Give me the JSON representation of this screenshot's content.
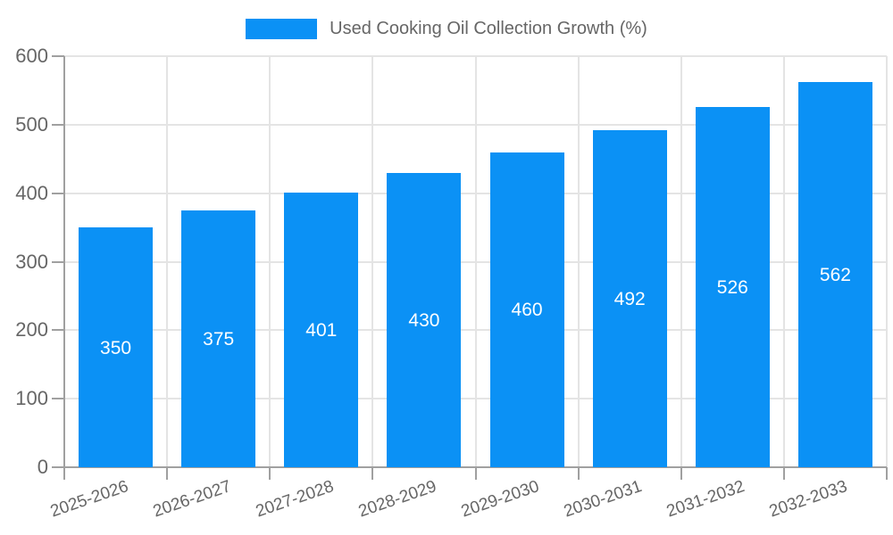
{
  "legend": {
    "label": "Used Cooking Oil Collection Growth (%)"
  },
  "chart_data": {
    "type": "bar",
    "title": "Used Cooking Oil Collection Growth (%)",
    "categories": [
      "2025-2026",
      "2026-2027",
      "2027-2028",
      "2028-2029",
      "2029-2030",
      "2030-2031",
      "2031-2032",
      "2032-2033"
    ],
    "values": [
      350,
      375,
      401,
      430,
      460,
      492,
      526,
      562
    ],
    "value_labels": [
      "350",
      "375",
      "401",
      "430",
      "460",
      "492",
      "526",
      "562"
    ],
    "xlabel": "",
    "ylabel": "",
    "ylim": [
      0,
      600
    ],
    "yticks": [
      0,
      100,
      200,
      300,
      400,
      500,
      600
    ],
    "grid": true,
    "legend_position": "top",
    "colors": {
      "bar": "#0b91f5",
      "value_label": "#ffffff",
      "tick_text": "#666666",
      "axis": "#a0a0a0",
      "gridline": "#e4e4e4",
      "background": "#ffffff"
    }
  }
}
